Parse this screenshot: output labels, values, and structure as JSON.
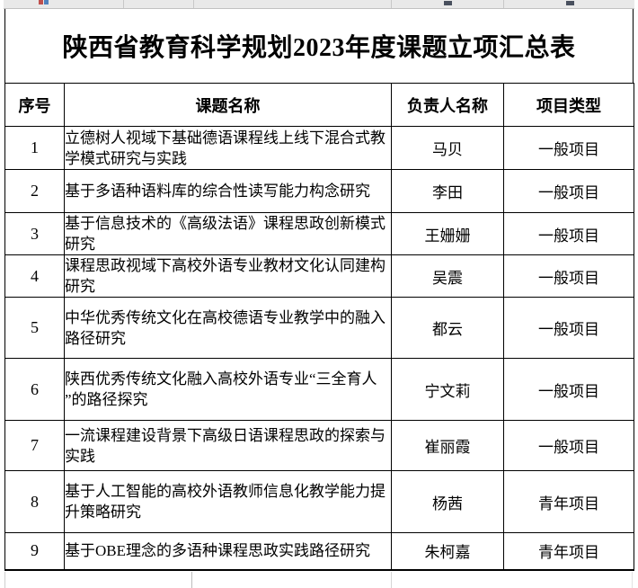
{
  "document": {
    "title": "陕西省教育科学规划2023年度课题立项汇总表"
  },
  "table": {
    "headers": [
      "序号",
      "课题名称",
      "负责人名称",
      "项目类型"
    ],
    "rows": [
      {
        "no": "1",
        "topic": "立德树人视域下基础德语课程线上线下混合式教学模式研究与实践",
        "leader": "马贝",
        "type": "一般项目"
      },
      {
        "no": "2",
        "topic": "基于多语种语料库的综合性读写能力构念研究",
        "leader": "李田",
        "type": "一般项目"
      },
      {
        "no": "3",
        "topic": "基于信息技术的《高级法语》课程思政创新模式研究",
        "leader": "王姗姗",
        "type": "一般项目"
      },
      {
        "no": "4",
        "topic": "课程思政视域下高校外语专业教材文化认同建构研究",
        "leader": "吴震",
        "type": "一般项目"
      },
      {
        "no": "5",
        "topic": "中华优秀传统文化在高校德语专业教学中的融入路径研究",
        "leader": "都云",
        "type": "一般项目"
      },
      {
        "no": "6",
        "topic": "陕西优秀传统文化融入高校外语专业“三全育人 ”的路径探究",
        "leader": "宁文莉",
        "type": "一般项目"
      },
      {
        "no": "7",
        "topic": "一流课程建设背景下高级日语课程思政的探索与实践",
        "leader": "崔丽霞",
        "type": "一般项目"
      },
      {
        "no": "8",
        "topic": "基于人工智能的高校外语教师信息化教学能力提升策略研究",
        "leader": "杨茜",
        "type": "青年项目"
      },
      {
        "no": "9",
        "topic": "基于OBE理念的多语种课程思政实践路径研究",
        "leader": "朱柯嘉",
        "type": "青年项目"
      }
    ]
  }
}
